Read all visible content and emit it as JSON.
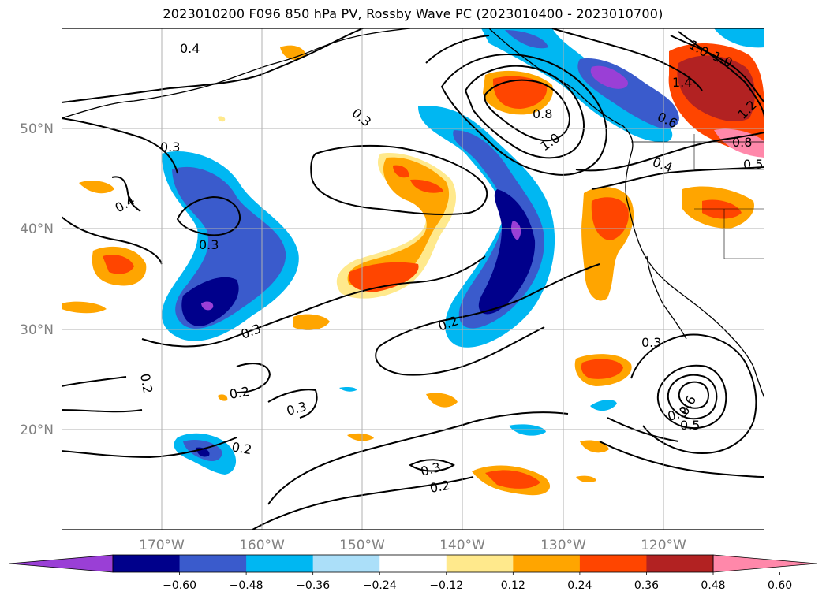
{
  "title": "2023010200 F096 850 hPa PV, Rossby Wave PC (2023010400 - 2023010700)",
  "lon_ticks": [
    "170°W",
    "160°W",
    "150°W",
    "140°W",
    "130°W",
    "120°W"
  ],
  "lat_ticks": [
    "50°N",
    "40°N",
    "30°N",
    "20°N"
  ],
  "colorbar": {
    "ticks": [
      "−0.60",
      "−0.48",
      "−0.36",
      "−0.24",
      "−0.12",
      "0.12",
      "0.24",
      "0.36",
      "0.48",
      "0.60"
    ],
    "colors": [
      "#9a3fd6",
      "#00008b",
      "#3a5bcc",
      "#00b7f2",
      "#abdff9",
      "#ffffff",
      "#ffe98c",
      "#ffa500",
      "#ff4500",
      "#b22222",
      "#ff88aa"
    ],
    "extend": "both"
  },
  "contour_labels": [
    "0.4",
    "0.3",
    "0.4",
    "0.3",
    "0.3",
    "0.3",
    "0.2",
    "0.2",
    "0.3",
    "0.2",
    "0.2",
    "0.3",
    "0.2",
    "0.3",
    "0.8",
    "1.0",
    "0.4",
    "1.0",
    "1.2",
    "1.4",
    "0.6",
    "1.0",
    "0.8",
    "0.5",
    "0.3",
    "0.6",
    "0.5"
  ],
  "map": {
    "projection": "plate-carree",
    "lon_range": [
      -180,
      -110
    ],
    "lat_range": [
      10,
      60
    ],
    "grid": true
  }
}
